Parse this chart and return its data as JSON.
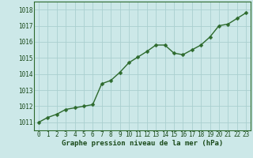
{
  "x": [
    0,
    1,
    2,
    3,
    4,
    5,
    6,
    7,
    8,
    9,
    10,
    11,
    12,
    13,
    14,
    15,
    16,
    17,
    18,
    19,
    20,
    21,
    22,
    23
  ],
  "y": [
    1011.0,
    1011.3,
    1011.5,
    1011.8,
    1011.9,
    1012.0,
    1012.1,
    1013.4,
    1013.6,
    1014.1,
    1014.7,
    1015.05,
    1015.4,
    1015.8,
    1015.8,
    1015.3,
    1015.2,
    1015.5,
    1015.8,
    1016.3,
    1017.0,
    1017.1,
    1017.45,
    1017.8
  ],
  "line_color": "#2d6a2d",
  "marker": "D",
  "marker_size": 2.5,
  "line_width": 1.0,
  "bg_color": "#cce8e8",
  "grid_color": "#aacfcf",
  "xlabel": "Graphe pression niveau de la mer (hPa)",
  "xlabel_color": "#1a4a1a",
  "xlabel_fontsize": 6.5,
  "tick_color": "#1a4a1a",
  "tick_fontsize": 5.5,
  "ylim": [
    1010.5,
    1018.5
  ],
  "yticks": [
    1011,
    1012,
    1013,
    1014,
    1015,
    1016,
    1017,
    1018
  ],
  "xlim": [
    -0.5,
    23.5
  ],
  "xticks": [
    0,
    1,
    2,
    3,
    4,
    5,
    6,
    7,
    8,
    9,
    10,
    11,
    12,
    13,
    14,
    15,
    16,
    17,
    18,
    19,
    20,
    21,
    22,
    23
  ],
  "spine_color": "#2d6a2d"
}
